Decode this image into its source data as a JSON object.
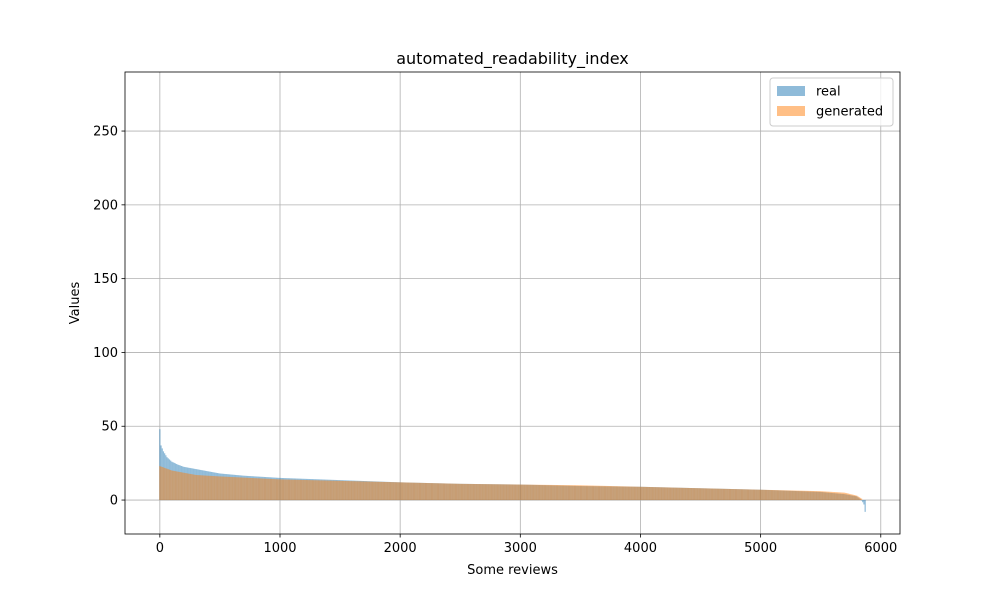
{
  "chart_data": {
    "type": "bar",
    "title": "automated_readability_index",
    "xlabel": "Some reviews",
    "ylabel": "Values",
    "xlim": [
      -290,
      6160
    ],
    "ylim": [
      -23,
      290
    ],
    "xticks": [
      0,
      1000,
      2000,
      3000,
      4000,
      5000,
      6000
    ],
    "yticks": [
      0,
      50,
      100,
      150,
      200,
      250
    ],
    "grid": true,
    "legend_position": "top-right",
    "n_items": 5870,
    "series": [
      {
        "name": "real",
        "color": "#1f77b4",
        "alpha": 0.5,
        "note": "sorted descending values per review",
        "profile": [
          [
            0,
            48
          ],
          [
            10,
            37
          ],
          [
            30,
            33
          ],
          [
            60,
            29
          ],
          [
            100,
            26
          ],
          [
            150,
            24
          ],
          [
            200,
            22.5
          ],
          [
            300,
            21
          ],
          [
            400,
            19.5
          ],
          [
            500,
            18
          ],
          [
            700,
            16.5
          ],
          [
            1000,
            15
          ],
          [
            1500,
            13.5
          ],
          [
            2000,
            12
          ],
          [
            2500,
            11
          ],
          [
            3000,
            10.5
          ],
          [
            3500,
            9.5
          ],
          [
            4000,
            9
          ],
          [
            4500,
            8
          ],
          [
            5000,
            7
          ],
          [
            5500,
            5.5
          ],
          [
            5700,
            4
          ],
          [
            5800,
            2.5
          ],
          [
            5840,
            0
          ],
          [
            5860,
            -3
          ],
          [
            5870,
            -8
          ]
        ]
      },
      {
        "name": "generated",
        "color": "#ff7f0e",
        "alpha": 0.5,
        "note": "sorted descending values per review",
        "profile": [
          [
            0,
            23
          ],
          [
            100,
            20
          ],
          [
            300,
            17
          ],
          [
            500,
            16
          ],
          [
            1000,
            14
          ],
          [
            1500,
            13
          ],
          [
            2000,
            12
          ],
          [
            2500,
            11
          ],
          [
            3000,
            10.5
          ],
          [
            3500,
            10
          ],
          [
            4000,
            9
          ],
          [
            4500,
            8
          ],
          [
            5000,
            7
          ],
          [
            5500,
            6
          ],
          [
            5700,
            5
          ],
          [
            5800,
            3
          ],
          [
            5840,
            1
          ]
        ]
      }
    ]
  }
}
